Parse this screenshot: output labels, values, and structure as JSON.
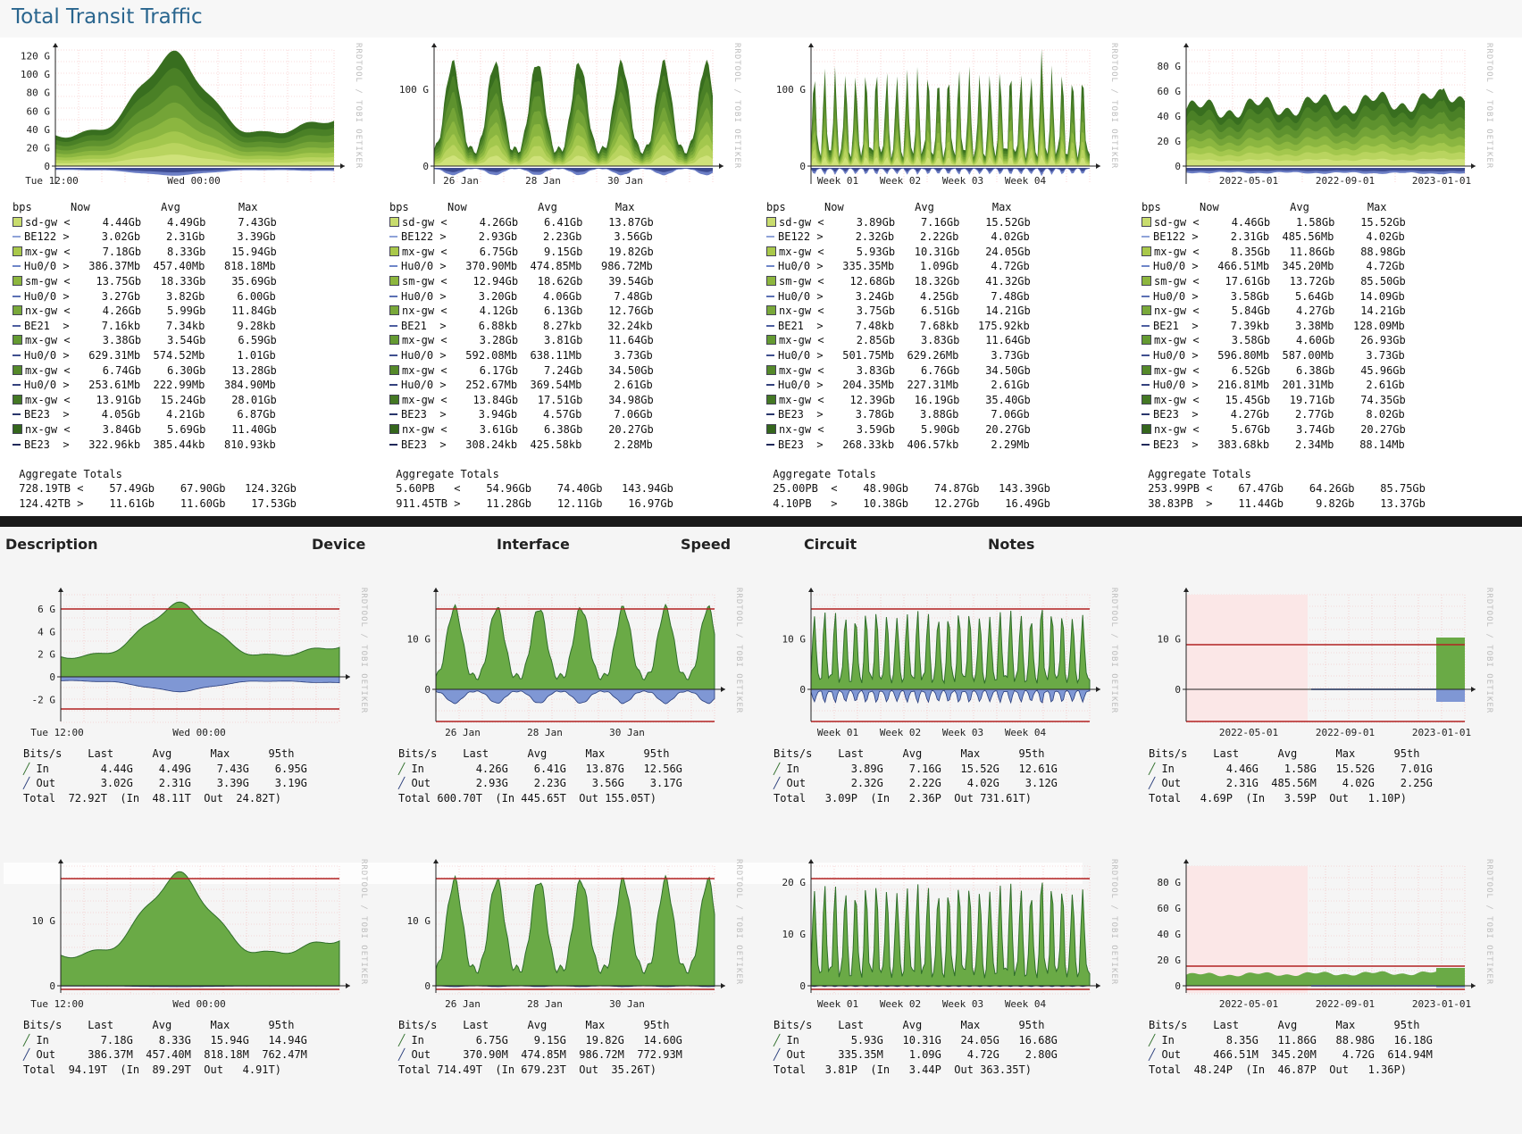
{
  "page": {
    "title": "Total Transit Traffic"
  },
  "table_headers": [
    "Description",
    "Device",
    "Interface",
    "Speed",
    "Circuit",
    "Notes"
  ],
  "watermark": "RRDTOOL / TOBI OETIKER",
  "colors": {
    "title": "#29658e",
    "in_area": "#6aaa46",
    "out_area": "#7f97d4",
    "limit_line": "#b22222",
    "grid": "#f3b7b7"
  },
  "aggregate": {
    "header": [
      "bps",
      "Now",
      "Avg",
      "Max"
    ],
    "totals_label": "Aggregate Totals",
    "graphs": [
      {
        "x_ticks": [
          "Tue 12:00",
          "Wed 00:00"
        ],
        "y_ticks": [
          "120 G",
          "100 G",
          "80 G",
          "60 G",
          "40 G",
          "20 G",
          "0"
        ],
        "rows": [
          [
            "sd-gw",
            "<",
            "4.44Gb",
            "4.49Gb",
            "7.43Gb"
          ],
          [
            "BE122",
            ">",
            "3.02Gb",
            "2.31Gb",
            "3.39Gb"
          ],
          [
            "mx-gw",
            "<",
            "7.18Gb",
            "8.33Gb",
            "15.94Gb"
          ],
          [
            "Hu0/0",
            ">",
            "386.37Mb",
            "457.40Mb",
            "818.18Mb"
          ],
          [
            "sm-gw",
            "<",
            "13.75Gb",
            "18.33Gb",
            "35.69Gb"
          ],
          [
            "Hu0/0",
            ">",
            "3.27Gb",
            "3.82Gb",
            "6.00Gb"
          ],
          [
            "nx-gw",
            "<",
            "4.26Gb",
            "5.99Gb",
            "11.84Gb"
          ],
          [
            "BE21",
            ">",
            "7.16kb",
            "7.34kb",
            "9.28kb"
          ],
          [
            "mx-gw",
            "<",
            "3.38Gb",
            "3.54Gb",
            "6.59Gb"
          ],
          [
            "Hu0/0",
            ">",
            "629.31Mb",
            "574.52Mb",
            "1.01Gb"
          ],
          [
            "mx-gw",
            "<",
            "6.74Gb",
            "6.30Gb",
            "13.28Gb"
          ],
          [
            "Hu0/0",
            ">",
            "253.61Mb",
            "222.99Mb",
            "384.90Mb"
          ],
          [
            "mx-gw",
            "<",
            "13.91Gb",
            "15.24Gb",
            "28.01Gb"
          ],
          [
            "BE23",
            ">",
            "4.05Gb",
            "4.21Gb",
            "6.87Gb"
          ],
          [
            "nx-gw",
            "<",
            "3.84Gb",
            "5.69Gb",
            "11.40Gb"
          ],
          [
            "BE23",
            ">",
            "322.96kb",
            "385.44kb",
            "810.93kb"
          ]
        ],
        "totals": [
          [
            "728.19TB",
            "<",
            "57.49Gb",
            "67.90Gb",
            "124.32Gb"
          ],
          [
            "124.42TB",
            ">",
            "11.61Gb",
            "11.60Gb",
            "17.53Gb"
          ]
        ]
      },
      {
        "x_ticks": [
          "26 Jan",
          "28 Jan",
          "30 Jan"
        ],
        "y_ticks": [
          "100 G",
          "0"
        ],
        "rows": [
          [
            "sd-gw",
            "<",
            "4.26Gb",
            "6.41Gb",
            "13.87Gb"
          ],
          [
            "BE122",
            ">",
            "2.93Gb",
            "2.23Gb",
            "3.56Gb"
          ],
          [
            "mx-gw",
            "<",
            "6.75Gb",
            "9.15Gb",
            "19.82Gb"
          ],
          [
            "Hu0/0",
            ">",
            "370.90Mb",
            "474.85Mb",
            "986.72Mb"
          ],
          [
            "sm-gw",
            "<",
            "12.94Gb",
            "18.62Gb",
            "39.54Gb"
          ],
          [
            "Hu0/0",
            ">",
            "3.20Gb",
            "4.06Gb",
            "7.48Gb"
          ],
          [
            "nx-gw",
            "<",
            "4.12Gb",
            "6.13Gb",
            "12.76Gb"
          ],
          [
            "BE21",
            ">",
            "6.88kb",
            "8.27kb",
            "32.24kb"
          ],
          [
            "mx-gw",
            "<",
            "3.28Gb",
            "3.81Gb",
            "11.64Gb"
          ],
          [
            "Hu0/0",
            ">",
            "592.08Mb",
            "638.11Mb",
            "3.73Gb"
          ],
          [
            "mx-gw",
            "<",
            "6.17Gb",
            "7.24Gb",
            "34.50Gb"
          ],
          [
            "Hu0/0",
            ">",
            "252.67Mb",
            "369.54Mb",
            "2.61Gb"
          ],
          [
            "mx-gw",
            "<",
            "13.84Gb",
            "17.51Gb",
            "34.98Gb"
          ],
          [
            "BE23",
            ">",
            "3.94Gb",
            "4.57Gb",
            "7.06Gb"
          ],
          [
            "nx-gw",
            "<",
            "3.61Gb",
            "6.38Gb",
            "20.27Gb"
          ],
          [
            "BE23",
            ">",
            "308.24kb",
            "425.58kb",
            "2.28Mb"
          ]
        ],
        "totals": [
          [
            "5.60PB",
            "<",
            "54.96Gb",
            "74.40Gb",
            "143.94Gb"
          ],
          [
            "911.45TB",
            ">",
            "11.28Gb",
            "12.11Gb",
            "16.97Gb"
          ]
        ]
      },
      {
        "x_ticks": [
          "Week 01",
          "Week 02",
          "Week 03",
          "Week 04"
        ],
        "y_ticks": [
          "100 G",
          "0"
        ],
        "rows": [
          [
            "sd-gw",
            "<",
            "3.89Gb",
            "7.16Gb",
            "15.52Gb"
          ],
          [
            "BE122",
            ">",
            "2.32Gb",
            "2.22Gb",
            "4.02Gb"
          ],
          [
            "mx-gw",
            "<",
            "5.93Gb",
            "10.31Gb",
            "24.05Gb"
          ],
          [
            "Hu0/0",
            ">",
            "335.35Mb",
            "1.09Gb",
            "4.72Gb"
          ],
          [
            "sm-gw",
            "<",
            "12.68Gb",
            "18.32Gb",
            "41.32Gb"
          ],
          [
            "Hu0/0",
            ">",
            "3.24Gb",
            "4.25Gb",
            "7.48Gb"
          ],
          [
            "nx-gw",
            "<",
            "3.75Gb",
            "6.51Gb",
            "14.21Gb"
          ],
          [
            "BE21",
            ">",
            "7.48kb",
            "7.68kb",
            "175.92kb"
          ],
          [
            "mx-gw",
            "<",
            "2.85Gb",
            "3.83Gb",
            "11.64Gb"
          ],
          [
            "Hu0/0",
            ">",
            "501.75Mb",
            "629.26Mb",
            "3.73Gb"
          ],
          [
            "mx-gw",
            "<",
            "3.83Gb",
            "6.76Gb",
            "34.50Gb"
          ],
          [
            "Hu0/0",
            ">",
            "204.35Mb",
            "227.31Mb",
            "2.61Gb"
          ],
          [
            "mx-gw",
            "<",
            "12.39Gb",
            "16.19Gb",
            "35.40Gb"
          ],
          [
            "BE23",
            ">",
            "3.78Gb",
            "3.88Gb",
            "7.06Gb"
          ],
          [
            "nx-gw",
            "<",
            "3.59Gb",
            "5.90Gb",
            "20.27Gb"
          ],
          [
            "BE23",
            ">",
            "268.33kb",
            "406.57kb",
            "2.29Mb"
          ]
        ],
        "totals": [
          [
            "25.00PB",
            "<",
            "48.90Gb",
            "74.87Gb",
            "143.39Gb"
          ],
          [
            "4.10PB",
            ">",
            "10.38Gb",
            "12.27Gb",
            "16.49Gb"
          ]
        ]
      },
      {
        "x_ticks": [
          "2022-05-01",
          "2022-09-01",
          "2023-01-01"
        ],
        "y_ticks": [
          "80 G",
          "60 G",
          "40 G",
          "20 G",
          "0"
        ],
        "rows": [
          [
            "sd-gw",
            "<",
            "4.46Gb",
            "1.58Gb",
            "15.52Gb"
          ],
          [
            "BE122",
            ">",
            "2.31Gb",
            "485.56Mb",
            "4.02Gb"
          ],
          [
            "mx-gw",
            "<",
            "8.35Gb",
            "11.86Gb",
            "88.98Gb"
          ],
          [
            "Hu0/0",
            ">",
            "466.51Mb",
            "345.20Mb",
            "4.72Gb"
          ],
          [
            "sm-gw",
            "<",
            "17.61Gb",
            "13.72Gb",
            "85.50Gb"
          ],
          [
            "Hu0/0",
            ">",
            "3.58Gb",
            "5.64Gb",
            "14.09Gb"
          ],
          [
            "nx-gw",
            "<",
            "5.84Gb",
            "4.27Gb",
            "14.21Gb"
          ],
          [
            "BE21",
            ">",
            "7.39kb",
            "3.38Mb",
            "128.09Mb"
          ],
          [
            "mx-gw",
            "<",
            "3.58Gb",
            "4.60Gb",
            "26.93Gb"
          ],
          [
            "Hu0/0",
            ">",
            "596.80Mb",
            "587.00Mb",
            "3.73Gb"
          ],
          [
            "mx-gw",
            "<",
            "6.52Gb",
            "6.38Gb",
            "45.96Gb"
          ],
          [
            "Hu0/0",
            ">",
            "216.81Mb",
            "201.31Mb",
            "2.61Gb"
          ],
          [
            "mx-gw",
            "<",
            "15.45Gb",
            "19.71Gb",
            "74.35Gb"
          ],
          [
            "BE23",
            ">",
            "4.27Gb",
            "2.77Gb",
            "8.02Gb"
          ],
          [
            "nx-gw",
            "<",
            "5.67Gb",
            "3.74Gb",
            "20.27Gb"
          ],
          [
            "BE23",
            ">",
            "383.68kb",
            "2.34Mb",
            "88.14Mb"
          ]
        ],
        "totals": [
          [
            "253.99PB",
            "<",
            "67.47Gb",
            "64.26Gb",
            "85.75Gb"
          ],
          [
            "38.83PB",
            ">",
            "11.44Gb",
            "9.82Gb",
            "13.37Gb"
          ]
        ]
      }
    ],
    "legend_colors": [
      "#c8dc6e",
      "#8fa3d9",
      "#a9c84a",
      "#6f86c9",
      "#8db63e",
      "#5b70b4",
      "#79a83a",
      "#4d5ea0",
      "#649a32",
      "#3f4f8e",
      "#55892a",
      "#34427d",
      "#447824",
      "#29366b",
      "#35661d",
      "#202a5a"
    ]
  },
  "interfaces": {
    "header": [
      "Bits/s",
      "Last",
      "Avg",
      "Max",
      "95th"
    ],
    "in_label": "In",
    "out_label": "Out",
    "total_label": "Total",
    "rows": [
      [
        {
          "x_ticks": [
            "Tue 12:00",
            "Wed 00:00"
          ],
          "y_ticks": [
            "6 G",
            "4 G",
            "2 G",
            "0",
            "-2 G"
          ],
          "in": [
            "4.44G",
            "4.49G",
            "7.43G",
            "6.95G"
          ],
          "out": [
            "3.02G",
            "2.31G",
            "3.39G",
            "3.19G"
          ],
          "total": "72.92T",
          "total_in": "48.11T",
          "total_out": "24.82T"
        },
        {
          "x_ticks": [
            "26 Jan",
            "28 Jan",
            "30 Jan"
          ],
          "y_ticks": [
            "10 G",
            "0"
          ],
          "in": [
            "4.26G",
            "6.41G",
            "13.87G",
            "12.56G"
          ],
          "out": [
            "2.93G",
            "2.23G",
            "3.56G",
            "3.17G"
          ],
          "total": "600.70T",
          "total_in": "445.65T",
          "total_out": "155.05T"
        },
        {
          "x_ticks": [
            "Week 01",
            "Week 02",
            "Week 03",
            "Week 04"
          ],
          "y_ticks": [
            "10 G",
            "0"
          ],
          "in": [
            "3.89G",
            "7.16G",
            "15.52G",
            "12.61G"
          ],
          "out": [
            "2.32G",
            "2.22G",
            "4.02G",
            "3.12G"
          ],
          "total": "3.09P",
          "total_in": "2.36P",
          "total_out": "731.61T"
        },
        {
          "x_ticks": [
            "2022-05-01",
            "2022-09-01",
            "2023-01-01"
          ],
          "y_ticks": [
            "10 G",
            "0"
          ],
          "in": [
            "4.46G",
            "1.58G",
            "15.52G",
            "7.01G"
          ],
          "out": [
            "2.31G",
            "485.56M",
            "4.02G",
            "2.25G"
          ],
          "total": "4.69P",
          "total_in": "3.59P",
          "total_out": "1.10P"
        }
      ],
      [
        {
          "x_ticks": [
            "Tue 12:00",
            "Wed 00:00"
          ],
          "y_ticks": [
            "10 G",
            "0"
          ],
          "in": [
            "7.18G",
            "8.33G",
            "15.94G",
            "14.94G"
          ],
          "out": [
            "386.37M",
            "457.40M",
            "818.18M",
            "762.47M"
          ],
          "total": "94.19T",
          "total_in": "89.29T",
          "total_out": "4.91T"
        },
        {
          "x_ticks": [
            "26 Jan",
            "28 Jan",
            "30 Jan"
          ],
          "y_ticks": [
            "10 G",
            "0"
          ],
          "in": [
            "6.75G",
            "9.15G",
            "19.82G",
            "14.60G"
          ],
          "out": [
            "370.90M",
            "474.85M",
            "986.72M",
            "772.93M"
          ],
          "total": "714.49T",
          "total_in": "679.23T",
          "total_out": "35.26T"
        },
        {
          "x_ticks": [
            "Week 01",
            "Week 02",
            "Week 03",
            "Week 04"
          ],
          "y_ticks": [
            "20 G",
            "10 G",
            "0"
          ],
          "in": [
            "5.93G",
            "10.31G",
            "24.05G",
            "16.68G"
          ],
          "out": [
            "335.35M",
            "1.09G",
            "4.72G",
            "2.80G"
          ],
          "total": "3.81P",
          "total_in": "3.44P",
          "total_out": "363.35T"
        },
        {
          "x_ticks": [
            "2022-05-01",
            "2022-09-01",
            "2023-01-01"
          ],
          "y_ticks": [
            "80 G",
            "60 G",
            "40 G",
            "20 G",
            "0"
          ],
          "in": [
            "8.35G",
            "11.86G",
            "88.98G",
            "16.18G"
          ],
          "out": [
            "466.51M",
            "345.20M",
            "4.72G",
            "614.94M"
          ],
          "total": "48.24P",
          "total_in": "46.87P",
          "total_out": "1.36P"
        }
      ]
    ]
  }
}
